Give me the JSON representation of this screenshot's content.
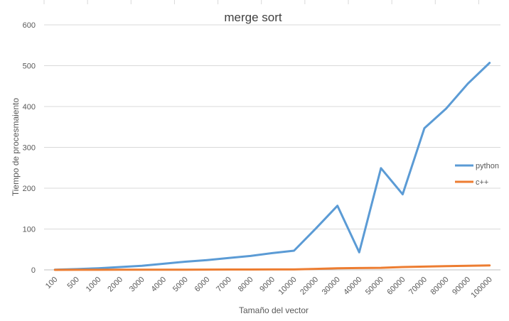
{
  "chart_data": {
    "type": "line",
    "title": "merge sort",
    "xlabel": "Tamaño del vector",
    "ylabel": "Tiempo de procesmaiento",
    "ylim": [
      0,
      600
    ],
    "yticks": [
      0,
      100,
      200,
      300,
      400,
      500,
      600
    ],
    "grid": true,
    "legend_position": "right",
    "categories": [
      "100",
      "500",
      "1000",
      "2000",
      "3000",
      "4000",
      "5000",
      "6000",
      "7000",
      "8000",
      "9000",
      "10000",
      "20000",
      "30000",
      "40000",
      "50000",
      "60000",
      "70000",
      "80000",
      "90000",
      "100000"
    ],
    "series": [
      {
        "name": "python",
        "color": "#5b9bd5",
        "values": [
          0.5,
          2,
          4,
          7,
          10,
          15,
          20,
          24,
          29,
          34,
          41,
          47,
          101,
          157,
          43,
          249,
          185,
          347,
          395,
          456,
          507
        ]
      },
      {
        "name": "c++",
        "color": "#ed7d31",
        "values": [
          0,
          0.1,
          0.2,
          0.3,
          0.4,
          0.5,
          0.6,
          0.7,
          0.8,
          0.9,
          1.0,
          1.1,
          2.5,
          4,
          4.5,
          5,
          7,
          8,
          9,
          10,
          11
        ]
      }
    ]
  }
}
